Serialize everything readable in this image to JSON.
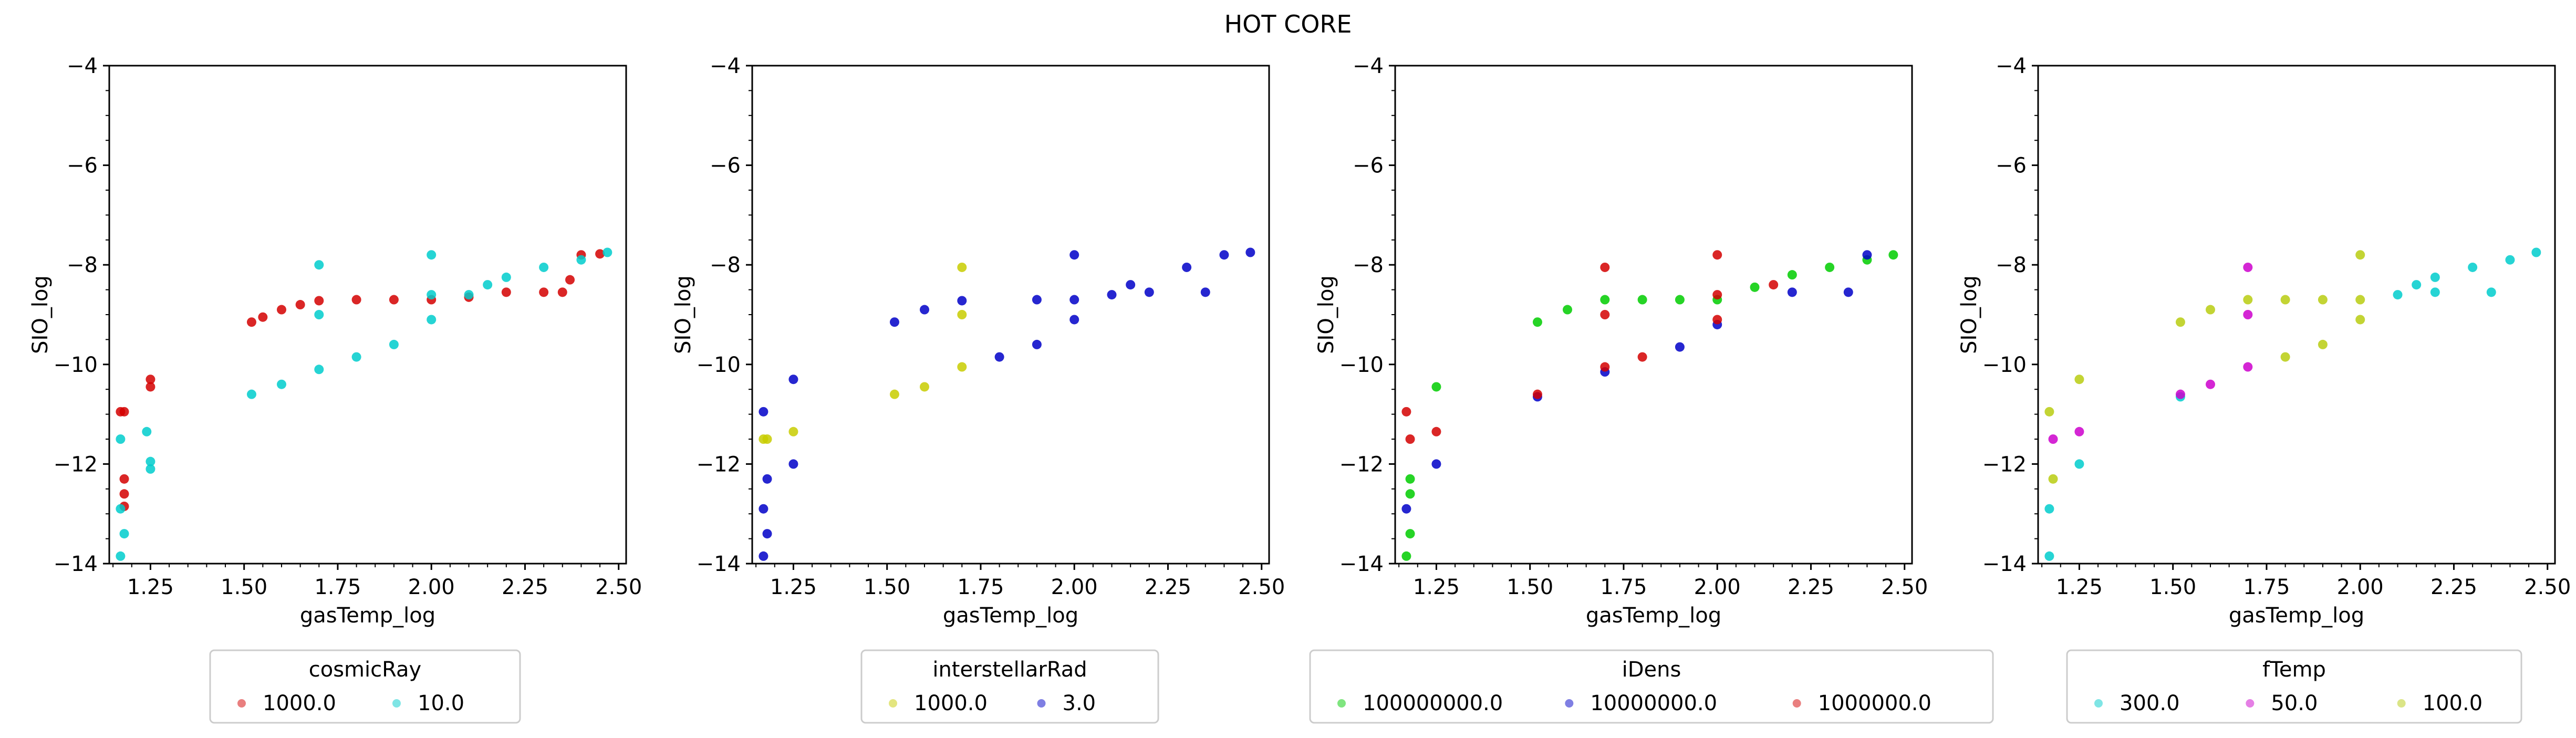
{
  "title": "HOT CORE",
  "colors": {
    "red": "#d40000",
    "cyan": "#00cccc",
    "yellow": "#c8cc00",
    "blue": "#0000c8",
    "green": "#00cc00",
    "magenta": "#cc00cc",
    "olive": "#b8cc10"
  },
  "chart_data": [
    {
      "type": "scatter",
      "xlabel": "gasTemp_log",
      "ylabel": "SIO_log",
      "xlim": [
        1.14,
        2.52
      ],
      "ylim": [
        -14,
        -4
      ],
      "xticks": [
        "1.25",
        "1.50",
        "1.75",
        "2.00",
        "2.25",
        "2.50"
      ],
      "yticks": [
        "−4",
        "−6",
        "−8",
        "−10",
        "−12",
        "−14"
      ],
      "legend": {
        "title": "cosmicRay",
        "position": "below",
        "entries": [
          "1000.0",
          "10.0"
        ]
      },
      "series": [
        {
          "name": "1000.0",
          "color": "#d40000",
          "alpha": 0.55,
          "points": [
            [
              1.17,
              -10.95
            ],
            [
              1.18,
              -10.95
            ],
            [
              1.18,
              -12.3
            ],
            [
              1.18,
              -12.6
            ],
            [
              1.18,
              -12.85
            ],
            [
              1.25,
              -10.3
            ],
            [
              1.25,
              -10.45
            ],
            [
              1.52,
              -9.15
            ],
            [
              1.55,
              -9.05
            ],
            [
              1.6,
              -8.9
            ],
            [
              1.65,
              -8.8
            ],
            [
              1.7,
              -8.72
            ],
            [
              1.8,
              -8.7
            ],
            [
              1.9,
              -8.7
            ],
            [
              2.0,
              -8.7
            ],
            [
              2.1,
              -8.65
            ],
            [
              2.2,
              -8.55
            ],
            [
              2.3,
              -8.55
            ],
            [
              2.35,
              -8.55
            ],
            [
              2.37,
              -8.3
            ],
            [
              2.4,
              -7.8
            ],
            [
              2.45,
              -7.78
            ]
          ]
        },
        {
          "name": "10.0",
          "color": "#00cccc",
          "alpha": 0.55,
          "points": [
            [
              1.17,
              -11.5
            ],
            [
              1.17,
              -12.9
            ],
            [
              1.18,
              -13.4
            ],
            [
              1.17,
              -13.85
            ],
            [
              1.24,
              -11.35
            ],
            [
              1.25,
              -11.95
            ],
            [
              1.25,
              -12.1
            ],
            [
              1.52,
              -10.6
            ],
            [
              1.6,
              -10.4
            ],
            [
              1.7,
              -10.1
            ],
            [
              1.8,
              -9.85
            ],
            [
              1.9,
              -9.6
            ],
            [
              2.0,
              -9.1
            ],
            [
              2.1,
              -8.6
            ],
            [
              2.15,
              -8.4
            ],
            [
              2.2,
              -8.25
            ],
            [
              2.3,
              -8.05
            ],
            [
              2.4,
              -7.9
            ],
            [
              2.47,
              -7.75
            ],
            [
              1.7,
              -8.0
            ],
            [
              1.7,
              -9.0
            ],
            [
              2.0,
              -7.8
            ],
            [
              2.0,
              -8.6
            ]
          ]
        }
      ]
    },
    {
      "type": "scatter",
      "xlabel": "gasTemp_log",
      "ylabel": "SIO_log",
      "xlim": [
        1.14,
        2.52
      ],
      "ylim": [
        -14,
        -4
      ],
      "xticks": [
        "1.25",
        "1.50",
        "1.75",
        "2.00",
        "2.25",
        "2.50"
      ],
      "yticks": [
        "−4",
        "−6",
        "−8",
        "−10",
        "−12",
        "−14"
      ],
      "legend": {
        "title": "interstellarRad",
        "position": "below",
        "entries": [
          "1000.0",
          "3.0"
        ]
      },
      "series": [
        {
          "name": "1000.0",
          "color": "#c8cc00",
          "alpha": 0.55,
          "points": [
            [
              1.17,
              -11.5
            ],
            [
              1.18,
              -11.5
            ],
            [
              1.25,
              -11.35
            ],
            [
              1.52,
              -10.6
            ],
            [
              1.6,
              -10.45
            ],
            [
              1.7,
              -8.05
            ],
            [
              1.7,
              -9.0
            ],
            [
              1.7,
              -10.05
            ]
          ]
        },
        {
          "name": "3.0",
          "color": "#0000c8",
          "alpha": 0.55,
          "points": [
            [
              1.17,
              -10.95
            ],
            [
              1.17,
              -12.9
            ],
            [
              1.18,
              -13.4
            ],
            [
              1.17,
              -13.85
            ],
            [
              1.18,
              -12.3
            ],
            [
              1.25,
              -10.3
            ],
            [
              1.25,
              -12.0
            ],
            [
              1.52,
              -9.15
            ],
            [
              1.6,
              -8.9
            ],
            [
              1.7,
              -8.72
            ],
            [
              1.9,
              -8.7
            ],
            [
              2.0,
              -7.8
            ],
            [
              2.0,
              -8.7
            ],
            [
              2.1,
              -8.6
            ],
            [
              2.2,
              -8.55
            ],
            [
              2.35,
              -8.55
            ],
            [
              2.4,
              -7.8
            ],
            [
              2.47,
              -7.75
            ],
            [
              1.8,
              -9.85
            ],
            [
              1.9,
              -9.6
            ],
            [
              2.0,
              -9.1
            ],
            [
              2.15,
              -8.4
            ],
            [
              2.3,
              -8.05
            ]
          ]
        }
      ]
    },
    {
      "type": "scatter",
      "xlabel": "gasTemp_log",
      "ylabel": "SIO_log",
      "xlim": [
        1.14,
        2.52
      ],
      "ylim": [
        -14,
        -4
      ],
      "xticks": [
        "1.25",
        "1.50",
        "1.75",
        "2.00",
        "2.25",
        "2.50"
      ],
      "yticks": [
        "−4",
        "−6",
        "−8",
        "−10",
        "−12",
        "−14"
      ],
      "legend": {
        "title": "iDens",
        "position": "below",
        "entries": [
          "100000000.0",
          "10000000.0",
          "1000000.0"
        ]
      },
      "series": [
        {
          "name": "100000000.0",
          "color": "#00cc00",
          "alpha": 0.55,
          "points": [
            [
              1.18,
              -12.3
            ],
            [
              1.18,
              -12.6
            ],
            [
              1.18,
              -13.4
            ],
            [
              1.17,
              -13.85
            ],
            [
              1.25,
              -10.45
            ],
            [
              1.52,
              -9.15
            ],
            [
              1.6,
              -8.9
            ],
            [
              1.7,
              -8.7
            ],
            [
              1.8,
              -8.7
            ],
            [
              1.9,
              -8.7
            ],
            [
              2.0,
              -8.7
            ],
            [
              2.1,
              -8.45
            ],
            [
              2.2,
              -8.2
            ],
            [
              2.3,
              -8.05
            ],
            [
              2.4,
              -7.9
            ],
            [
              2.47,
              -7.8
            ]
          ]
        },
        {
          "name": "10000000.0",
          "color": "#0000c8",
          "alpha": 0.55,
          "points": [
            [
              1.17,
              -12.9
            ],
            [
              1.25,
              -12.0
            ],
            [
              1.52,
              -10.65
            ],
            [
              1.7,
              -10.15
            ],
            [
              1.9,
              -9.65
            ],
            [
              2.0,
              -9.2
            ],
            [
              2.2,
              -8.55
            ],
            [
              2.35,
              -8.55
            ],
            [
              2.4,
              -7.8
            ]
          ]
        },
        {
          "name": "1000000.0",
          "color": "#d40000",
          "alpha": 0.55,
          "points": [
            [
              1.17,
              -10.95
            ],
            [
              1.18,
              -11.5
            ],
            [
              1.25,
              -11.35
            ],
            [
              1.52,
              -10.6
            ],
            [
              1.7,
              -8.05
            ],
            [
              1.7,
              -9.0
            ],
            [
              1.7,
              -10.05
            ],
            [
              1.8,
              -9.85
            ],
            [
              2.0,
              -7.8
            ],
            [
              2.0,
              -8.6
            ],
            [
              2.0,
              -9.1
            ],
            [
              2.15,
              -8.4
            ]
          ]
        }
      ]
    },
    {
      "type": "scatter",
      "xlabel": "gasTemp_log",
      "ylabel": "SIO_log",
      "xlim": [
        1.14,
        2.52
      ],
      "ylim": [
        -14,
        -4
      ],
      "xticks": [
        "1.25",
        "1.50",
        "1.75",
        "2.00",
        "2.25",
        "2.50"
      ],
      "yticks": [
        "−4",
        "−6",
        "−8",
        "−10",
        "−12",
        "−14"
      ],
      "legend": {
        "title": "fTemp",
        "position": "below",
        "entries": [
          "300.0",
          "50.0",
          "100.0"
        ]
      },
      "series": [
        {
          "name": "300.0",
          "color": "#00cccc",
          "alpha": 0.55,
          "points": [
            [
              1.17,
              -12.9
            ],
            [
              1.17,
              -13.85
            ],
            [
              1.25,
              -12.0
            ],
            [
              1.52,
              -10.65
            ],
            [
              2.1,
              -8.6
            ],
            [
              2.15,
              -8.4
            ],
            [
              2.2,
              -8.25
            ],
            [
              2.3,
              -8.05
            ],
            [
              2.4,
              -7.9
            ],
            [
              2.47,
              -7.75
            ],
            [
              2.2,
              -8.55
            ],
            [
              2.35,
              -8.55
            ]
          ]
        },
        {
          "name": "50.0",
          "color": "#cc00cc",
          "alpha": 0.55,
          "points": [
            [
              1.18,
              -11.5
            ],
            [
              1.25,
              -11.35
            ],
            [
              1.52,
              -10.6
            ],
            [
              1.7,
              -8.05
            ],
            [
              1.7,
              -9.0
            ],
            [
              1.7,
              -10.05
            ],
            [
              1.6,
              -10.4
            ]
          ]
        },
        {
          "name": "100.0",
          "color": "#b8cc10",
          "alpha": 0.55,
          "points": [
            [
              1.17,
              -10.95
            ],
            [
              1.18,
              -12.3
            ],
            [
              1.25,
              -10.3
            ],
            [
              1.52,
              -9.15
            ],
            [
              1.6,
              -8.9
            ],
            [
              1.7,
              -8.7
            ],
            [
              1.8,
              -8.7
            ],
            [
              1.9,
              -8.7
            ],
            [
              2.0,
              -7.8
            ],
            [
              2.0,
              -8.7
            ],
            [
              2.0,
              -9.1
            ],
            [
              1.8,
              -9.85
            ],
            [
              1.9,
              -9.6
            ]
          ]
        }
      ]
    }
  ]
}
